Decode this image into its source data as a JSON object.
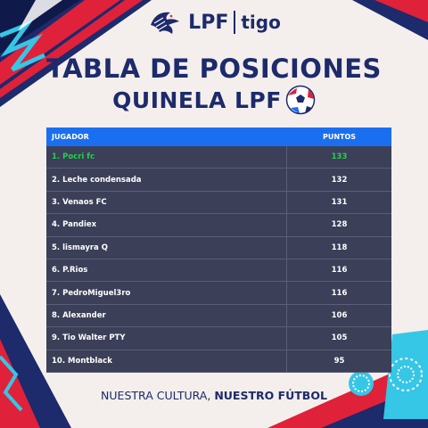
{
  "brand": {
    "lpf": "LPF",
    "tigo": "tigo"
  },
  "title": "TABLA DE POSICIONES",
  "subtitle": "QUINELA LPF",
  "table": {
    "headers": [
      "JUGADOR",
      "PUNTOS"
    ],
    "rows": [
      {
        "name": "1. Pocri fc",
        "points": "133"
      },
      {
        "name": "2. Leche condensada",
        "points": "132"
      },
      {
        "name": "3. Venaos FC",
        "points": "131"
      },
      {
        "name": "4. Pandiex",
        "points": "128"
      },
      {
        "name": "5. lismayra Q",
        "points": "118"
      },
      {
        "name": "6. P.Rios",
        "points": "116"
      },
      {
        "name": "7. PedroMiguel3ro",
        "points": "116"
      },
      {
        "name": "8. Alexander",
        "points": "106"
      },
      {
        "name": "9. Tio Walter PTY",
        "points": "105"
      },
      {
        "name": "10. Montblack",
        "points": "95"
      }
    ]
  },
  "footer": {
    "part1": "NUESTRA CULTURA, ",
    "part2": "NUESTRO FÚTBOL"
  },
  "colors": {
    "navy": "#1d2a6b",
    "accent_blue": "#1a6ff0",
    "row_bg": "#3b3f58",
    "leader_green": "#22d14a",
    "red": "#e0213a",
    "cyan": "#36c6e6"
  },
  "icons": [
    "eagle-logo-icon",
    "soccer-ball-icon"
  ]
}
